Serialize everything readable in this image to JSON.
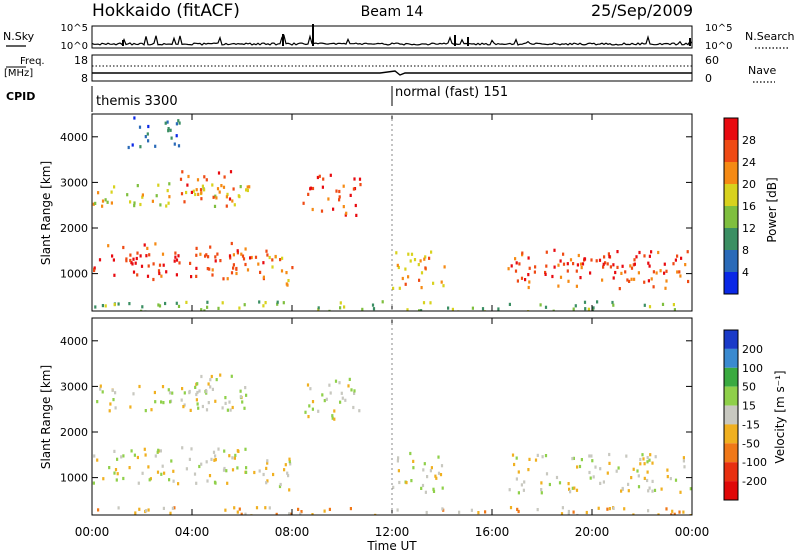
{
  "header": {
    "station": "Hokkaido (fitACF)",
    "beam": "Beam 14",
    "date": "25/Sep/2009"
  },
  "top_panels": {
    "nsky_label": "N.Sky",
    "nsearch_label": "N.Search",
    "nsky_ticks": [
      "10^5",
      "10^0"
    ],
    "nsearch_ticks": [
      "10^5",
      "10^0"
    ],
    "freq_label_1": "Freq.",
    "freq_label_2": "[MHz]",
    "freq_ticks": [
      "18",
      "8"
    ],
    "nave_label": "Nave",
    "nave_ticks": [
      "60",
      "0"
    ],
    "cpid_label": "CPID",
    "cpid_mode_1": "themis 3300",
    "cpid_mode_2": "normal (fast) 151"
  },
  "chart_data": [
    {
      "type": "heatmap",
      "panel": "power",
      "ylabel": "Slant Range [km]",
      "xlabel": "Time UT",
      "x_ticks": [
        "00:00",
        "04:00",
        "08:00",
        "12:00",
        "16:00",
        "20:00",
        "00:00"
      ],
      "x_tick_hours": [
        0,
        4,
        8,
        12,
        16,
        20,
        24
      ],
      "y_ticks": [
        1000,
        2000,
        3000,
        4000
      ],
      "ylim": [
        180,
        4500
      ],
      "colorbar_label": "Power [dB]",
      "colorbar_ticks": [
        "4",
        "8",
        "12",
        "16",
        "20",
        "24",
        "28"
      ],
      "colorbar_colors": [
        "#0a28e6",
        "#2a6ab8",
        "#3b8f63",
        "#7fbf3f",
        "#d8d21e",
        "#f58a14",
        "#ef4a14",
        "#e80a10"
      ],
      "regions": [
        {
          "t0": 0.0,
          "t1": 7.0,
          "r0": 900,
          "r1": 1700,
          "level": 6
        },
        {
          "t0": 0.0,
          "t1": 6.6,
          "r0": 1300,
          "r1": 1450,
          "level": 7
        },
        {
          "t0": 0.0,
          "t1": 6.3,
          "r0": 2500,
          "r1": 3050,
          "level": 4
        },
        {
          "t0": 3.5,
          "t1": 5.7,
          "r0": 2500,
          "r1": 3300,
          "level": 6
        },
        {
          "t0": 6.8,
          "t1": 8.0,
          "r0": 700,
          "r1": 1500,
          "level": 5
        },
        {
          "t0": 8.4,
          "t1": 10.7,
          "r0": 2300,
          "r1": 3200,
          "level": 6
        },
        {
          "t0": 1.4,
          "t1": 3.6,
          "r0": 3800,
          "r1": 4500,
          "level": 1
        },
        {
          "t0": 12.0,
          "t1": 14.2,
          "r0": 700,
          "r1": 1600,
          "level": 5
        },
        {
          "t0": 16.6,
          "t1": 24.0,
          "r0": 700,
          "r1": 1550,
          "level": 6
        },
        {
          "t0": 18.5,
          "t1": 22.5,
          "r0": 1100,
          "r1": 1450,
          "level": 7
        },
        {
          "t0": 0.0,
          "t1": 24.0,
          "r0": 180,
          "r1": 420,
          "level": 3
        }
      ]
    },
    {
      "type": "heatmap",
      "panel": "velocity",
      "ylabel": "Slant Range [km]",
      "xlabel": "Time UT",
      "x_ticks": [
        "00:00",
        "04:00",
        "08:00",
        "12:00",
        "16:00",
        "20:00",
        "00:00"
      ],
      "x_tick_hours": [
        0,
        4,
        8,
        12,
        16,
        20,
        24
      ],
      "y_ticks": [
        1000,
        2000,
        3000,
        4000
      ],
      "ylim": [
        180,
        4500
      ],
      "colorbar_label": "Velocity [m s⁻¹]",
      "colorbar_ticks": [
        "200",
        "100",
        "50",
        "15",
        "-15",
        "-50",
        "-100",
        "-200"
      ],
      "colorbar_colors": [
        "#1a3ac8",
        "#3a8ad0",
        "#3aaa40",
        "#8fd04a",
        "#c8c8c0",
        "#f0b020",
        "#f07818",
        "#e83010",
        "#e00808"
      ],
      "regions": [
        {
          "t0": 0.0,
          "t1": 7.0,
          "r0": 900,
          "r1": 1700,
          "level": 4
        },
        {
          "t0": 0.0,
          "t1": 6.3,
          "r0": 2500,
          "r1": 3050,
          "level": 4
        },
        {
          "t0": 3.5,
          "t1": 5.7,
          "r0": 2500,
          "r1": 3300,
          "level": 4
        },
        {
          "t0": 6.8,
          "t1": 8.0,
          "r0": 700,
          "r1": 1500,
          "level": 4
        },
        {
          "t0": 8.4,
          "t1": 10.7,
          "r0": 2300,
          "r1": 3200,
          "level": 4
        },
        {
          "t0": 12.0,
          "t1": 14.2,
          "r0": 700,
          "r1": 1600,
          "level": 4
        },
        {
          "t0": 16.6,
          "t1": 24.0,
          "r0": 700,
          "r1": 1550,
          "level": 4
        },
        {
          "t0": 0.0,
          "t1": 24.0,
          "r0": 180,
          "r1": 380,
          "level": 5
        }
      ]
    }
  ]
}
